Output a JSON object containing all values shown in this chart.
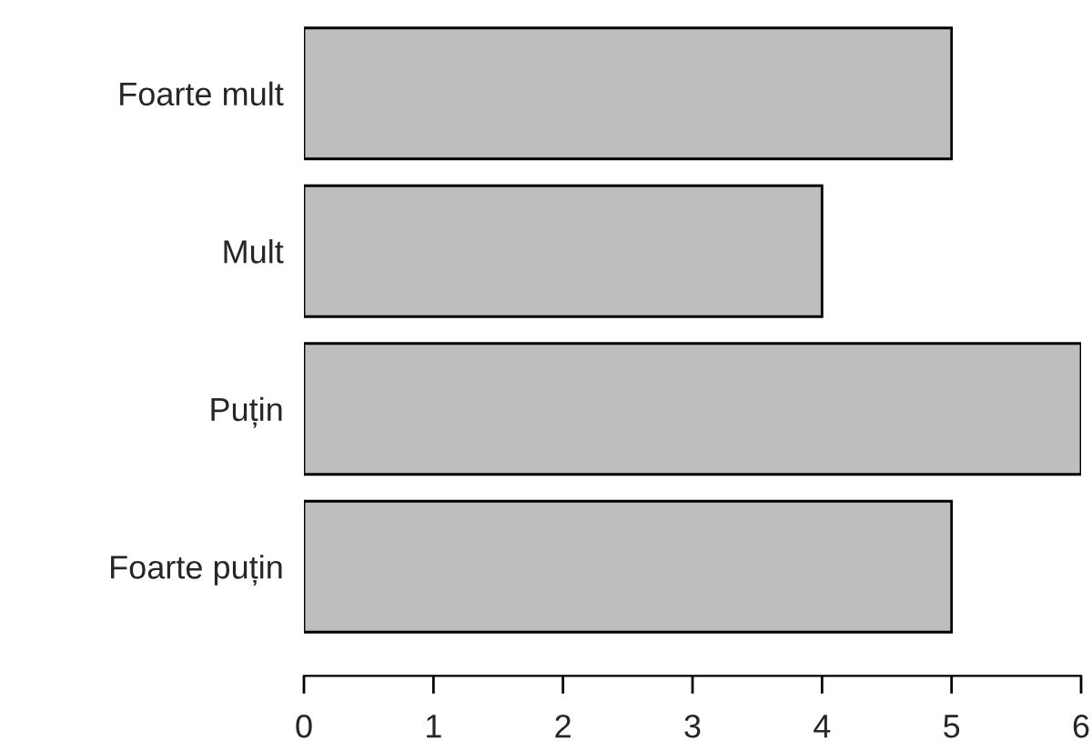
{
  "chart_data": {
    "type": "bar",
    "orientation": "horizontal",
    "categories": [
      "Foarte mult",
      "Mult",
      "Puțin",
      "Foarte puțin"
    ],
    "values": [
      5,
      4,
      6,
      5
    ],
    "color": "#bebebe",
    "xlim": [
      0,
      6
    ],
    "xticks": [
      0,
      1,
      2,
      3,
      4,
      5,
      6
    ],
    "grid": false,
    "legend": false
  }
}
